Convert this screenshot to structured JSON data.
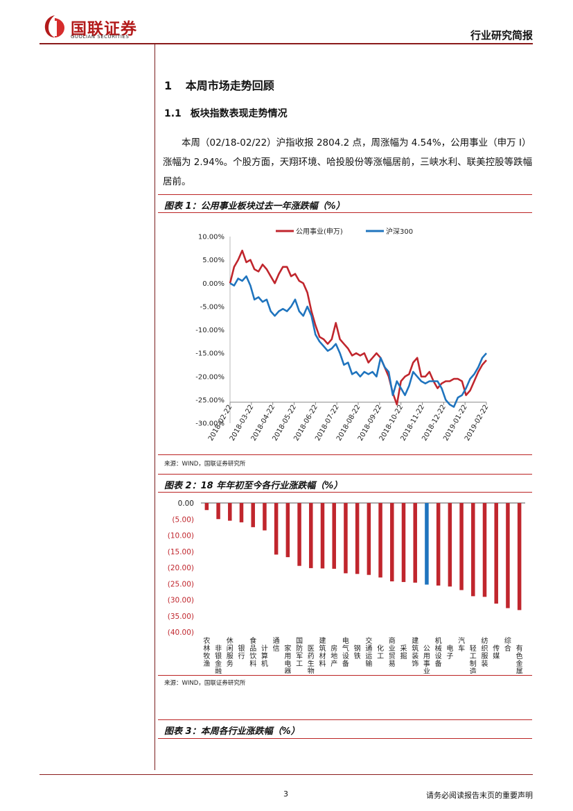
{
  "header": {
    "logo_cn": "国联证券",
    "logo_en": "GUOLIAN SECURITIES",
    "report_type": "行业研究简报"
  },
  "section": {
    "h1_num": "1",
    "h1_title": "本周市场走势回顾",
    "h2_num": "1.1",
    "h2_title": "板块指数表现走势情况",
    "paragraph": "本周（02/18-02/22）沪指收报 2804.2 点，周涨幅为 4.54%，公用事业（申万 I）涨幅为 2.94%。个股方面，天翔环境、哈投股份等涨幅居前，三峡水利、联美控股等跌幅居前。"
  },
  "figures": [
    {
      "title": "图表 1：公用事业板块过去一年涨跌幅（%）",
      "source": "来源：WIND，国联证券研究所"
    },
    {
      "title": "图表 2：18 年年初至今各行业涨跌幅（%）",
      "source": "来源：WIND，国联证券研究所"
    },
    {
      "title": "图表 3：本周各行业涨跌幅（%）"
    }
  ],
  "chart_data": [
    {
      "type": "line",
      "title": "",
      "ylim": [
        -30,
        10
      ],
      "y_ticks": [
        "10.00%",
        "5.00%",
        "0.00%",
        "-5.00%",
        "-10.00%",
        "-15.00%",
        "-20.00%",
        "-25.00%",
        "-30.00%"
      ],
      "y_tick_values": [
        10,
        5,
        0,
        -5,
        -10,
        -15,
        -20,
        -25,
        -30
      ],
      "x_ticks": [
        "2018-02-22",
        "2018-03-22",
        "2018-04-22",
        "2018-05-22",
        "2018-06-22",
        "2018-07-22",
        "2018-08-22",
        "2018-09-22",
        "2018-10-22",
        "2018-11-22",
        "2018-12-22",
        "2019-01-22",
        "2019-02-22"
      ],
      "legend_position": "top-center",
      "series": [
        {
          "name": "公用事业(申万)",
          "color": "#c0262d",
          "values": [
            0,
            3.5,
            5,
            7,
            4.5,
            5,
            3,
            2.5,
            4,
            3,
            1.5,
            0,
            2,
            3.5,
            3.5,
            1.5,
            2,
            0.5,
            0,
            -2,
            -6,
            -9,
            -11.5,
            -12,
            -13,
            -12,
            -8.5,
            -12,
            -13,
            -14,
            -15.5,
            -15,
            -15.5,
            -15,
            -17,
            -16,
            -15,
            -16,
            -18,
            -20,
            -23.5,
            -26,
            -21,
            -20,
            -19.5,
            -17,
            -16,
            -20,
            -20,
            -19,
            -21,
            -22.5,
            -21.5,
            -21,
            -21,
            -20.5,
            -20.5,
            -21,
            -24,
            -23,
            -21,
            -19,
            -17.5,
            -16.5
          ]
        },
        {
          "name": "沪深300",
          "color": "#1f74be",
          "values": [
            0,
            -0.5,
            1,
            0.5,
            1.5,
            -0.5,
            -3.5,
            -3,
            -4,
            -3.5,
            -6,
            -7,
            -6,
            -5.5,
            -6,
            -5,
            -3.5,
            -6,
            -7,
            -5,
            -7,
            -11,
            -12.5,
            -13.5,
            -14.5,
            -14,
            -13,
            -15,
            -17.5,
            -17,
            -19.5,
            -19,
            -20,
            -19,
            -19.5,
            -19,
            -20,
            -16,
            -18,
            -19,
            -24,
            -21,
            -22.5,
            -24,
            -22,
            -19,
            -20,
            -21,
            -21.5,
            -21,
            -21,
            -21,
            -22.5,
            -25,
            -26,
            -26.5,
            -24.5,
            -24,
            -22.5,
            -20.5,
            -19.5,
            -18,
            -16,
            -15
          ]
        }
      ]
    },
    {
      "type": "bar",
      "ylim": [
        -40,
        0
      ],
      "y_ticks": [
        "0.00",
        "(5.00)",
        "(10.00)",
        "(15.00)",
        "(20.00)",
        "(25.00)",
        "(30.00)",
        "(35.00)",
        "(40.00)"
      ],
      "y_tick_values": [
        0,
        -5,
        -10,
        -15,
        -20,
        -25,
        -30,
        -35,
        -40
      ],
      "highlight_color": "#1f74be",
      "bar_color": "#c0262d",
      "categories": [
        "农林牧渔",
        "非银金融",
        "休闲服务",
        "银行",
        "食品饮料",
        "计算机",
        "通信",
        "家用电器",
        "国防军工",
        "医药生物",
        "建筑材料",
        "房地产",
        "电气设备",
        "钢铁",
        "交通运输",
        "化工",
        "商业贸易",
        "采掘",
        "建筑装饰",
        "公用事业",
        "机械设备",
        "电子",
        "汽车",
        "轻工制造",
        "纺织服装",
        "传媒",
        "综合",
        "有色金属"
      ],
      "values": [
        -2.2,
        -5,
        -5.5,
        -6,
        -7.5,
        -8.5,
        -16,
        -16.8,
        -19.5,
        -20.2,
        -20.3,
        -20.4,
        -21.8,
        -22,
        -22.3,
        -23.1,
        -24.3,
        -24.5,
        -24.7,
        -25.3,
        -25.6,
        -25.9,
        -27,
        -28.9,
        -29.1,
        -31.2,
        -32.6,
        -33.2
      ],
      "highlight": "公用事业"
    }
  ],
  "footer": {
    "page": "3",
    "disclaimer": "请务必阅读报告末页的重要声明"
  }
}
